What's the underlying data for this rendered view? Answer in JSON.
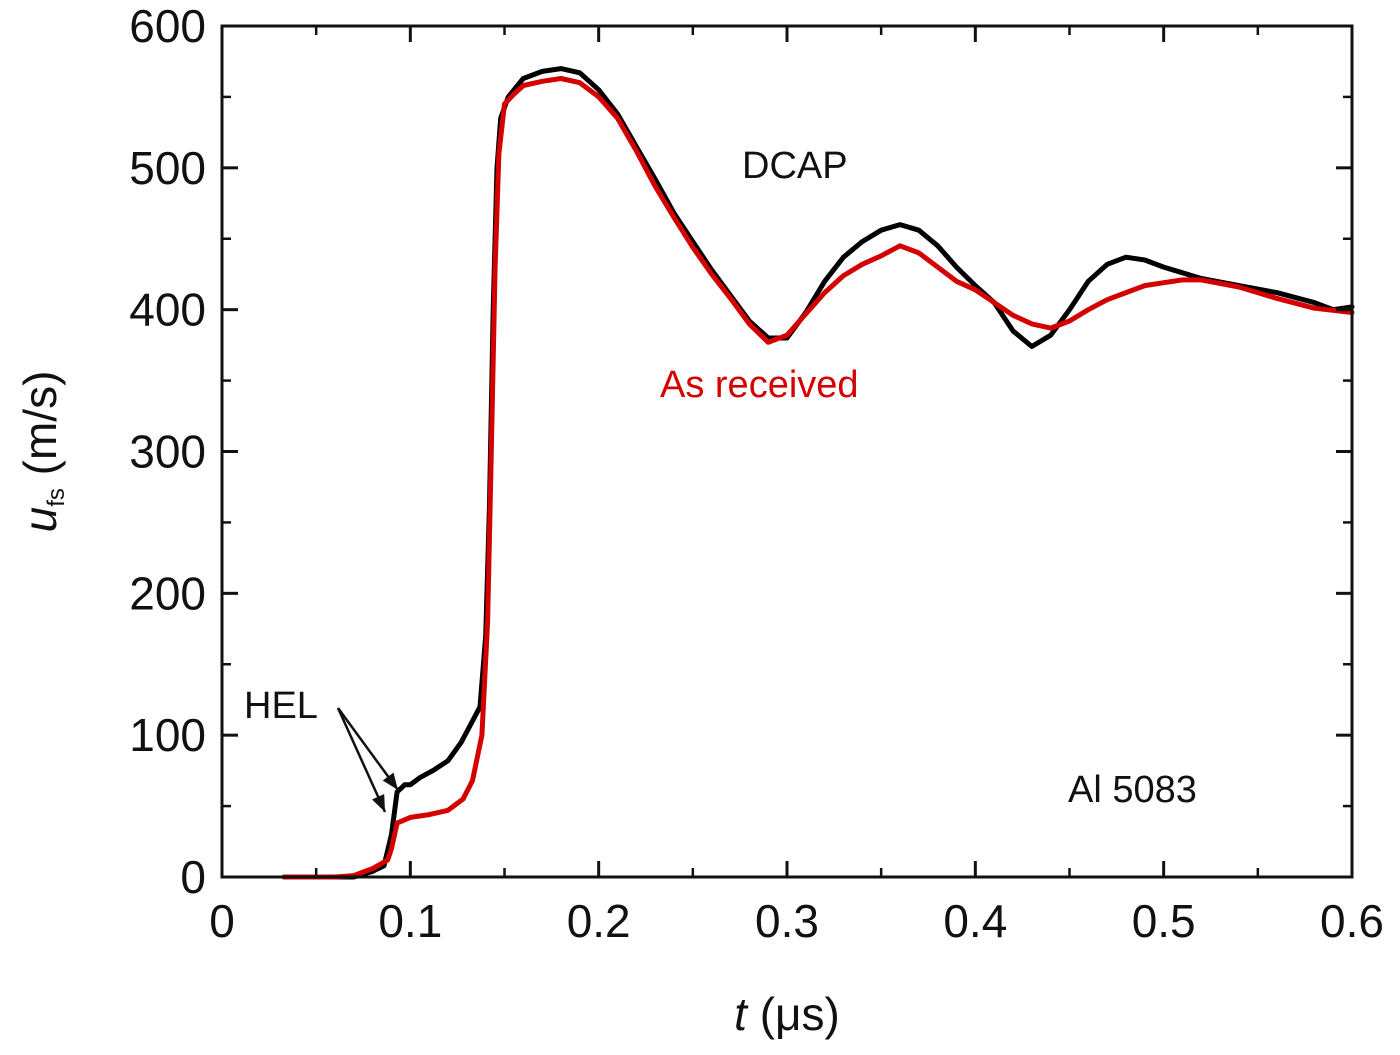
{
  "chart_data": {
    "type": "line",
    "xlabel": {
      "var": "t",
      "unit": " (μs)"
    },
    "ylabel": {
      "var": "u",
      "sub": "fs",
      "unit": " (m/s)"
    },
    "xlim": [
      0,
      0.6
    ],
    "ylim": [
      0,
      600
    ],
    "x_ticks": [
      0,
      0.1,
      0.2,
      0.3,
      0.4,
      0.5,
      0.6
    ],
    "x_tick_labels": [
      "0",
      "0.1",
      "0.2",
      "0.3",
      "0.4",
      "0.5",
      "0.6"
    ],
    "y_ticks": [
      0,
      100,
      200,
      300,
      400,
      500,
      600
    ],
    "y_tick_labels": [
      "0",
      "100",
      "200",
      "300",
      "400",
      "500",
      "600"
    ],
    "grid": false,
    "annotations": {
      "dcap": "DCAP",
      "as_received": "As received",
      "hel": "HEL",
      "material": "Al 5083"
    },
    "series": [
      {
        "name": "DCAP",
        "color": "#000000",
        "points": [
          [
            0.033,
            0
          ],
          [
            0.05,
            0
          ],
          [
            0.07,
            0
          ],
          [
            0.08,
            4
          ],
          [
            0.086,
            8
          ],
          [
            0.09,
            30
          ],
          [
            0.093,
            60
          ],
          [
            0.097,
            65
          ],
          [
            0.1,
            65
          ],
          [
            0.105,
            70
          ],
          [
            0.112,
            75
          ],
          [
            0.12,
            82
          ],
          [
            0.127,
            95
          ],
          [
            0.133,
            110
          ],
          [
            0.137,
            120
          ],
          [
            0.14,
            170
          ],
          [
            0.142,
            260
          ],
          [
            0.144,
            400
          ],
          [
            0.146,
            500
          ],
          [
            0.148,
            535
          ],
          [
            0.152,
            550
          ],
          [
            0.16,
            563
          ],
          [
            0.17,
            568
          ],
          [
            0.18,
            570
          ],
          [
            0.19,
            567
          ],
          [
            0.2,
            555
          ],
          [
            0.21,
            538
          ],
          [
            0.22,
            515
          ],
          [
            0.23,
            492
          ],
          [
            0.24,
            468
          ],
          [
            0.25,
            448
          ],
          [
            0.26,
            428
          ],
          [
            0.27,
            410
          ],
          [
            0.28,
            392
          ],
          [
            0.29,
            380
          ],
          [
            0.3,
            380
          ],
          [
            0.31,
            398
          ],
          [
            0.32,
            420
          ],
          [
            0.33,
            437
          ],
          [
            0.34,
            448
          ],
          [
            0.35,
            456
          ],
          [
            0.36,
            460
          ],
          [
            0.37,
            456
          ],
          [
            0.38,
            445
          ],
          [
            0.39,
            430
          ],
          [
            0.4,
            417
          ],
          [
            0.41,
            405
          ],
          [
            0.42,
            385
          ],
          [
            0.43,
            374
          ],
          [
            0.44,
            382
          ],
          [
            0.45,
            400
          ],
          [
            0.46,
            420
          ],
          [
            0.47,
            432
          ],
          [
            0.48,
            437
          ],
          [
            0.49,
            435
          ],
          [
            0.5,
            430
          ],
          [
            0.51,
            426
          ],
          [
            0.52,
            422
          ],
          [
            0.54,
            417
          ],
          [
            0.56,
            412
          ],
          [
            0.58,
            405
          ],
          [
            0.59,
            400
          ],
          [
            0.6,
            402
          ]
        ]
      },
      {
        "name": "As received",
        "color": "#d50000",
        "points": [
          [
            0.033,
            0
          ],
          [
            0.05,
            0
          ],
          [
            0.06,
            0
          ],
          [
            0.07,
            1
          ],
          [
            0.08,
            6
          ],
          [
            0.088,
            12
          ],
          [
            0.09,
            20
          ],
          [
            0.093,
            38
          ],
          [
            0.1,
            42
          ],
          [
            0.11,
            44
          ],
          [
            0.12,
            47
          ],
          [
            0.128,
            55
          ],
          [
            0.133,
            68
          ],
          [
            0.138,
            100
          ],
          [
            0.141,
            180
          ],
          [
            0.143,
            300
          ],
          [
            0.145,
            430
          ],
          [
            0.147,
            510
          ],
          [
            0.15,
            545
          ],
          [
            0.155,
            552
          ],
          [
            0.16,
            558
          ],
          [
            0.17,
            561
          ],
          [
            0.18,
            563
          ],
          [
            0.19,
            560
          ],
          [
            0.2,
            550
          ],
          [
            0.21,
            535
          ],
          [
            0.22,
            512
          ],
          [
            0.23,
            487
          ],
          [
            0.24,
            465
          ],
          [
            0.25,
            444
          ],
          [
            0.26,
            425
          ],
          [
            0.27,
            408
          ],
          [
            0.28,
            390
          ],
          [
            0.29,
            377
          ],
          [
            0.3,
            382
          ],
          [
            0.31,
            397
          ],
          [
            0.32,
            412
          ],
          [
            0.33,
            424
          ],
          [
            0.34,
            432
          ],
          [
            0.35,
            438
          ],
          [
            0.36,
            445
          ],
          [
            0.37,
            440
          ],
          [
            0.38,
            430
          ],
          [
            0.39,
            420
          ],
          [
            0.4,
            414
          ],
          [
            0.41,
            405
          ],
          [
            0.42,
            396
          ],
          [
            0.43,
            390
          ],
          [
            0.44,
            387
          ],
          [
            0.45,
            392
          ],
          [
            0.46,
            400
          ],
          [
            0.47,
            407
          ],
          [
            0.48,
            412
          ],
          [
            0.49,
            417
          ],
          [
            0.5,
            419
          ],
          [
            0.51,
            421
          ],
          [
            0.52,
            421
          ],
          [
            0.54,
            416
          ],
          [
            0.56,
            408
          ],
          [
            0.58,
            401
          ],
          [
            0.6,
            398
          ]
        ]
      }
    ]
  }
}
